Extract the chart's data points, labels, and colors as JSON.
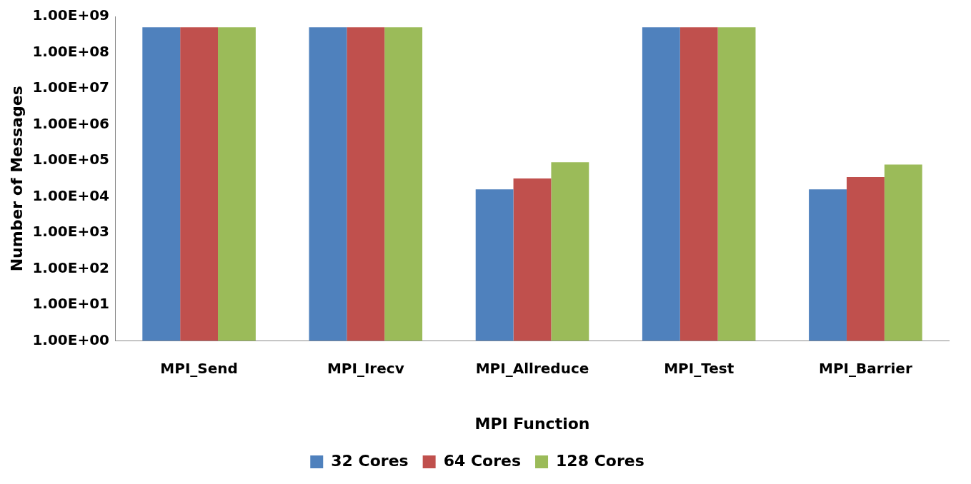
{
  "chart_data": {
    "type": "bar",
    "xlabel": "MPI Function",
    "ylabel": "Number of Messages",
    "categories": [
      "MPI_Send",
      "MPI_Irecv",
      "MPI_Allreduce",
      "MPI_Test",
      "MPI_Barrier"
    ],
    "series": [
      {
        "name": "32 Cores",
        "color": "#4f81bd",
        "values": [
          500000000,
          500000000,
          16000,
          500000000,
          16000
        ]
      },
      {
        "name": "64 Cores",
        "color": "#c0504d",
        "values": [
          500000000,
          500000000,
          32000,
          500000000,
          35000
        ]
      },
      {
        "name": "128 Cores",
        "color": "#9bbb59",
        "values": [
          500000000,
          500000000,
          90000,
          500000000,
          78000
        ]
      }
    ],
    "log": "y",
    "ylim": [
      1,
      1000000000
    ],
    "yticks": [
      {
        "value": 1,
        "label": "1.00E+00"
      },
      {
        "value": 10,
        "label": "1.00E+01"
      },
      {
        "value": 100,
        "label": "1.00E+02"
      },
      {
        "value": 1000,
        "label": "1.00E+03"
      },
      {
        "value": 10000,
        "label": "1.00E+04"
      },
      {
        "value": 100000,
        "label": "1.00E+05"
      },
      {
        "value": 1000000,
        "label": "1.00E+06"
      },
      {
        "value": 10000000,
        "label": "1.00E+07"
      },
      {
        "value": 100000000,
        "label": "1.00E+08"
      },
      {
        "value": 1000000000,
        "label": "1.00E+09"
      }
    ],
    "grid": false,
    "legend": "bottom"
  }
}
